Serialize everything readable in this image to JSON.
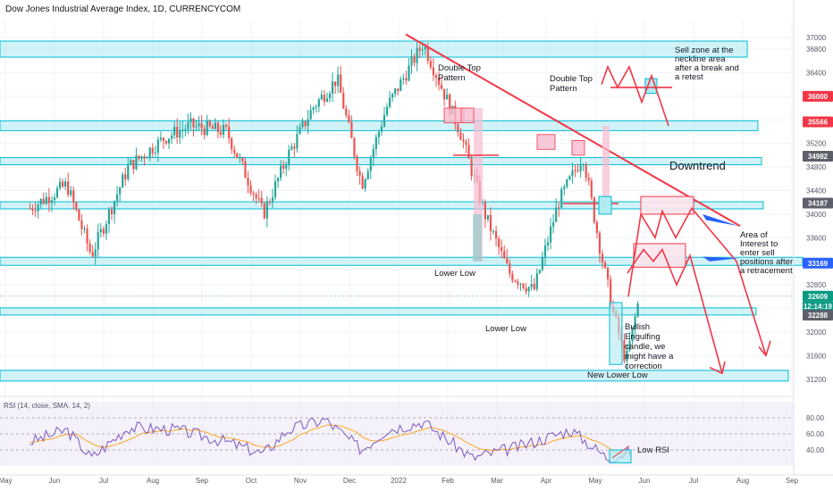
{
  "title": "Dow Jones Industrial Average Index, 1D, CURRENCYCOM",
  "chart_data": {
    "type": "candlestick",
    "title": "Dow Jones Industrial Average Index, 1D, CURRENCYCOM",
    "ylim": [
      31000,
      37300
    ],
    "y_ticks": [
      37000,
      36800,
      36400,
      36000,
      35600,
      35200,
      34800,
      34400,
      34000,
      33600,
      33200,
      32800,
      32400,
      32000,
      31600,
      31200
    ],
    "x_ticks": [
      "May",
      "Jun",
      "Jul",
      "Aug",
      "Sep",
      "Oct",
      "Nov",
      "Dec",
      "2022",
      "Feb",
      "Mar",
      "Apr",
      "May",
      "Jun",
      "Jul",
      "Aug",
      "Sep"
    ],
    "price_labels": [
      {
        "value": 36000,
        "text": "36000",
        "color": "#f23645"
      },
      {
        "value": 35566,
        "text": "35566",
        "color": "#f23645"
      },
      {
        "value": 34982,
        "text": "34982",
        "color": "#5d606b"
      },
      {
        "value": 34187,
        "text": "34187",
        "color": "#5d606b"
      },
      {
        "value": 33169,
        "text": "33169",
        "color": "#2962ff"
      },
      {
        "value": 32609,
        "text": "32609",
        "color": "#089981"
      },
      {
        "value": 32288,
        "text": "32288",
        "color": "#5d606b"
      }
    ],
    "countdown": "12:14:19",
    "support_resistance_zones": [
      36800,
      35500,
      34900,
      34150,
      33200,
      32350,
      31260
    ],
    "path_points": [
      [
        "May",
        34100
      ],
      [
        "Jun",
        34500
      ],
      [
        "Jun",
        33300
      ],
      [
        "Jul",
        34800
      ],
      [
        "Aug",
        35300
      ],
      [
        "Aug",
        35500
      ],
      [
        "Sep",
        35400
      ],
      [
        "Oct",
        34000
      ],
      [
        "Oct",
        35000
      ],
      [
        "Nov",
        35800
      ],
      [
        "Nov",
        36300
      ],
      [
        "Dec",
        34500
      ],
      [
        "Dec",
        35800
      ],
      [
        "2022",
        36900
      ],
      [
        "Feb",
        35400
      ],
      [
        "Feb",
        34000
      ],
      [
        "Mar",
        33000
      ],
      [
        "Mar",
        32700
      ],
      [
        "Apr",
        34200
      ],
      [
        "Apr",
        35000
      ],
      [
        "May",
        33300
      ],
      [
        "May",
        32300
      ],
      [
        "May",
        31500
      ],
      [
        "May",
        32500
      ]
    ],
    "annotations": [
      "Double Top Pattern",
      "Double Top Pattern",
      "Sell zone at the neckline area after a break and a retest",
      "Downtrend",
      "Area of Interest to enter sell positions after a retracement",
      "Lower Low",
      "Lower Low",
      "Bullish Engulfing candle, we might have a correction",
      "New Lower Low",
      "Low RSI"
    ],
    "rsi": {
      "label": "RSI (14, close, SMA, 14, 2)",
      "ylim": [
        20,
        100
      ],
      "y_ticks": [
        80,
        60,
        40
      ],
      "y_tick_labels": [
        "80.00",
        "60.00",
        "40.00"
      ],
      "path_points": [
        [
          "May",
          50
        ],
        [
          "Jun",
          65
        ],
        [
          "Jun",
          30
        ],
        [
          "Jul",
          68
        ],
        [
          "Aug",
          65
        ],
        [
          "Sep",
          50
        ],
        [
          "Oct",
          35
        ],
        [
          "Oct",
          65
        ],
        [
          "Nov",
          78
        ],
        [
          "Dec",
          40
        ],
        [
          "Dec",
          65
        ],
        [
          "2022",
          75
        ],
        [
          "Feb",
          30
        ],
        [
          "Mar",
          45
        ],
        [
          "Apr",
          65
        ],
        [
          "May",
          30
        ],
        [
          "May",
          38
        ]
      ]
    }
  },
  "annotations": {
    "double_top_1": [
      "Double Top",
      "Pattern"
    ],
    "double_top_2": [
      "Double Top",
      "Pattern"
    ],
    "sell_zone": [
      "Sell zone at the",
      "neckline area",
      "after a break and",
      "a retest"
    ],
    "downtrend": "Downtrend",
    "area_of_interest": [
      "Area of",
      "Interest to",
      "enter sell",
      "positions after",
      "a retracement"
    ],
    "lower_low_1": "Lower Low",
    "lower_low_2": "Lower Low",
    "bullish": [
      "Bullish",
      "Engulfing",
      "candle, we",
      "might have a",
      "correction"
    ],
    "new_lower_low": "New Lower Low",
    "low_rsi": "Low RSI"
  },
  "colors": {
    "up": "#26a69a",
    "down": "#ef5350",
    "zone_fill": "#b2ebf2",
    "zone_stroke": "#00bcd4",
    "red_line": "#f23645",
    "blue_arrow": "#2962ff",
    "rsi_line": "#7e57c2",
    "rsi_bg": "#ede7f6"
  }
}
